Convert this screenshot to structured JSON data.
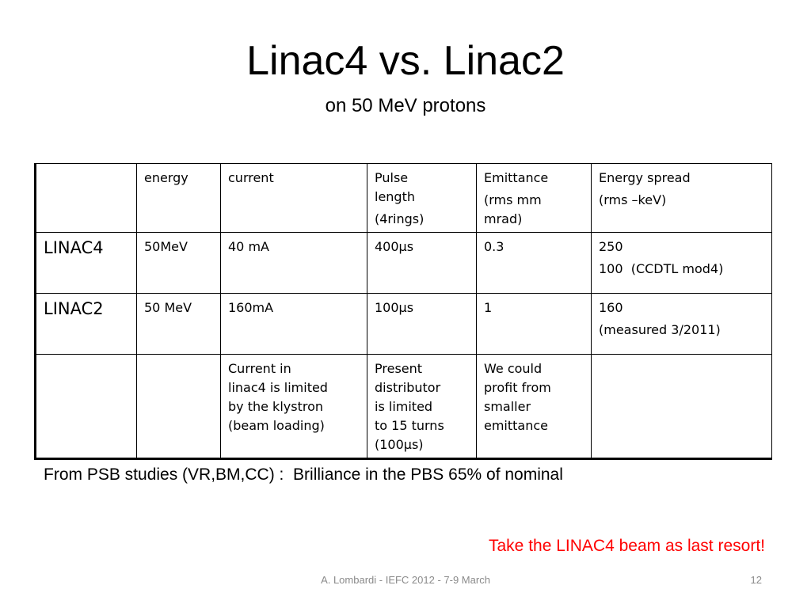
{
  "slide": {
    "title": "Linac4 vs. Linac2",
    "subtitle": "on 50 MeV protons"
  },
  "table": {
    "header": {
      "c0": "",
      "energy": "energy",
      "current": "current",
      "pulse_line1": "Pulse",
      "pulse_line2": "length",
      "pulse_line3": "(4rings)",
      "emittance_line1": "Emittance",
      "emittance_line2": "(rms mm",
      "emittance_line3": "mrad)",
      "spread_line1": "Energy spread",
      "spread_line2": "(rms –keV)"
    },
    "rows": [
      {
        "name": "LINAC4",
        "energy": "50MeV",
        "current": "40 mA",
        "pulse": "400µs",
        "emittance": "0.3",
        "spread_line1": "250",
        "spread_line2": "100  (CCDTL mod4)"
      },
      {
        "name": "LINAC2",
        "energy": "50 MeV",
        "current": "160mA",
        "pulse": "100µs",
        "emittance": "1",
        "spread_line1": "160",
        "spread_line2": "(measured 3/2011)"
      }
    ],
    "notes_row": {
      "current": [
        "Current in",
        "linac4 is limited",
        "by the klystron",
        "(beam loading)"
      ],
      "pulse": [
        "Present",
        "distributor",
        "is limited",
        "to 15 turns",
        "(100µs)"
      ],
      "emittance": [
        "We could",
        "profit from",
        "smaller",
        "emittance"
      ]
    }
  },
  "note": "From PSB studies (VR,BM,CC) :  Brilliance in the PBS 65% of nominal",
  "callout": "Take the LINAC4 beam as last resort!",
  "footer": {
    "text": "A. Lombardi - IEFC 2012 - 7-9 March",
    "page_number": "12"
  },
  "colors": {
    "callout": "#ff0000",
    "footer": "#8a8a8a"
  }
}
